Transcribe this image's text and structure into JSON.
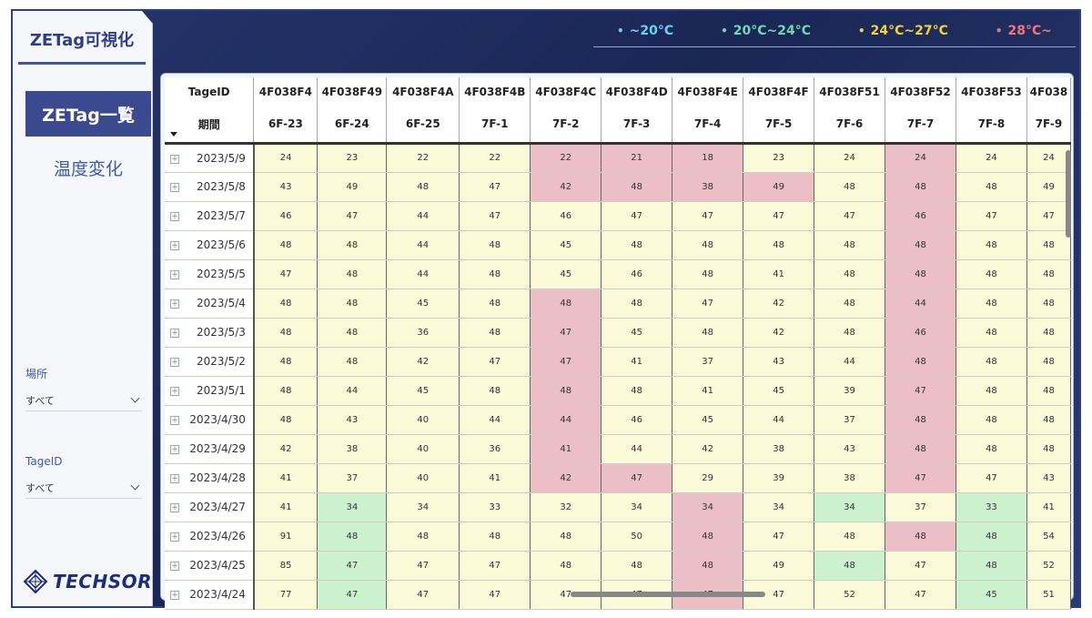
{
  "app": {
    "title": "ZETag可視化"
  },
  "sidebar": {
    "nav": [
      {
        "label": "ZETag一覧"
      },
      {
        "label": "温度変化"
      }
    ],
    "filters": [
      {
        "label": "場所",
        "value": "すべて"
      },
      {
        "label": "TageID",
        "value": "すべて"
      }
    ],
    "logo": "TECHSOR"
  },
  "legend": [
    {
      "label": "~20°C",
      "color": "#66d3f2"
    },
    {
      "label": "20°C~24°C",
      "color": "#6fd7b3"
    },
    {
      "label": "24°C~27°C",
      "color": "#f3d23a"
    },
    {
      "label": "28°C~",
      "color": "#f0757a"
    }
  ],
  "colors": {
    "normal": "#fafad8",
    "hot": "#ebbfc5",
    "cool": "#ccf2cd",
    "frame": "#1d2b5e"
  },
  "table": {
    "header_tag": "TageID",
    "header_period": "期間",
    "tags": [
      "4F038F4",
      "4F038F49",
      "4F038F4A",
      "4F038F4B",
      "4F038F4C",
      "4F038F4D",
      "4F038F4E",
      "4F038F4F",
      "4F038F51",
      "4F038F52",
      "4F038F53",
      "4F038"
    ],
    "places": [
      "6F-23",
      "6F-24",
      "6F-25",
      "7F-1",
      "7F-2",
      "7F-3",
      "7F-4",
      "7F-5",
      "7F-6",
      "7F-7",
      "7F-8",
      "7F-9"
    ],
    "rows": [
      {
        "date": "2023/5/9",
        "values": [
          "24",
          "23",
          "22",
          "22",
          "22",
          "21",
          "18",
          "23",
          "24",
          "24",
          "24",
          "24"
        ],
        "status": [
          "n",
          "n",
          "n",
          "n",
          "r",
          "r",
          "r",
          "n",
          "n",
          "r",
          "n",
          "n"
        ]
      },
      {
        "date": "2023/5/8",
        "values": [
          "43",
          "49",
          "48",
          "47",
          "42",
          "48",
          "38",
          "49",
          "48",
          "48",
          "48",
          "49"
        ],
        "status": [
          "n",
          "n",
          "n",
          "n",
          "r",
          "r",
          "r",
          "r",
          "n",
          "r",
          "n",
          "n"
        ]
      },
      {
        "date": "2023/5/7",
        "values": [
          "46",
          "47",
          "44",
          "47",
          "46",
          "47",
          "47",
          "47",
          "47",
          "46",
          "47",
          "47"
        ],
        "status": [
          "n",
          "n",
          "n",
          "n",
          "n",
          "n",
          "n",
          "n",
          "n",
          "r",
          "n",
          "n"
        ]
      },
      {
        "date": "2023/5/6",
        "values": [
          "48",
          "48",
          "44",
          "48",
          "45",
          "48",
          "48",
          "48",
          "48",
          "48",
          "48",
          "48"
        ],
        "status": [
          "n",
          "n",
          "n",
          "n",
          "n",
          "n",
          "n",
          "n",
          "n",
          "r",
          "n",
          "n"
        ]
      },
      {
        "date": "2023/5/5",
        "values": [
          "47",
          "48",
          "44",
          "48",
          "45",
          "46",
          "48",
          "41",
          "48",
          "48",
          "48",
          "48"
        ],
        "status": [
          "n",
          "n",
          "n",
          "n",
          "n",
          "n",
          "n",
          "n",
          "n",
          "r",
          "n",
          "n"
        ]
      },
      {
        "date": "2023/5/4",
        "values": [
          "48",
          "48",
          "45",
          "48",
          "48",
          "48",
          "47",
          "42",
          "48",
          "44",
          "48",
          "48"
        ],
        "status": [
          "n",
          "n",
          "n",
          "n",
          "r",
          "n",
          "n",
          "n",
          "n",
          "r",
          "n",
          "n"
        ]
      },
      {
        "date": "2023/5/3",
        "values": [
          "48",
          "48",
          "36",
          "48",
          "47",
          "45",
          "48",
          "42",
          "48",
          "46",
          "48",
          "48"
        ],
        "status": [
          "n",
          "n",
          "n",
          "n",
          "r",
          "n",
          "n",
          "n",
          "n",
          "r",
          "n",
          "n"
        ]
      },
      {
        "date": "2023/5/2",
        "values": [
          "48",
          "48",
          "42",
          "47",
          "47",
          "41",
          "37",
          "43",
          "44",
          "48",
          "48",
          "48"
        ],
        "status": [
          "n",
          "n",
          "n",
          "n",
          "r",
          "n",
          "n",
          "n",
          "n",
          "r",
          "n",
          "n"
        ]
      },
      {
        "date": "2023/5/1",
        "values": [
          "48",
          "44",
          "45",
          "48",
          "48",
          "48",
          "41",
          "45",
          "39",
          "47",
          "48",
          "48"
        ],
        "status": [
          "n",
          "n",
          "n",
          "n",
          "r",
          "n",
          "n",
          "n",
          "n",
          "r",
          "n",
          "n"
        ]
      },
      {
        "date": "2023/4/30",
        "values": [
          "48",
          "43",
          "40",
          "44",
          "44",
          "46",
          "45",
          "44",
          "37",
          "48",
          "48",
          "48"
        ],
        "status": [
          "n",
          "n",
          "n",
          "n",
          "r",
          "n",
          "n",
          "n",
          "n",
          "r",
          "n",
          "n"
        ]
      },
      {
        "date": "2023/4/29",
        "values": [
          "42",
          "38",
          "40",
          "36",
          "41",
          "44",
          "42",
          "38",
          "43",
          "48",
          "48",
          "48"
        ],
        "status": [
          "n",
          "n",
          "n",
          "n",
          "r",
          "n",
          "n",
          "n",
          "n",
          "r",
          "n",
          "n"
        ]
      },
      {
        "date": "2023/4/28",
        "values": [
          "41",
          "37",
          "40",
          "41",
          "42",
          "47",
          "29",
          "39",
          "38",
          "47",
          "47",
          "43"
        ],
        "status": [
          "n",
          "n",
          "n",
          "n",
          "r",
          "r",
          "n",
          "n",
          "n",
          "r",
          "n",
          "n"
        ]
      },
      {
        "date": "2023/4/27",
        "values": [
          "41",
          "34",
          "34",
          "33",
          "32",
          "34",
          "34",
          "34",
          "34",
          "37",
          "33",
          "41"
        ],
        "status": [
          "n",
          "g",
          "n",
          "n",
          "n",
          "n",
          "r",
          "n",
          "g",
          "n",
          "g",
          "n"
        ]
      },
      {
        "date": "2023/4/26",
        "values": [
          "91",
          "48",
          "48",
          "48",
          "48",
          "50",
          "48",
          "47",
          "48",
          "48",
          "48",
          "54"
        ],
        "status": [
          "n",
          "g",
          "n",
          "n",
          "n",
          "n",
          "r",
          "n",
          "n",
          "r",
          "g",
          "n"
        ]
      },
      {
        "date": "2023/4/25",
        "values": [
          "85",
          "47",
          "47",
          "47",
          "48",
          "48",
          "48",
          "49",
          "48",
          "47",
          "48",
          "52"
        ],
        "status": [
          "n",
          "g",
          "n",
          "n",
          "n",
          "n",
          "r",
          "n",
          "g",
          "n",
          "g",
          "n"
        ]
      },
      {
        "date": "2023/4/24",
        "values": [
          "77",
          "47",
          "47",
          "47",
          "47",
          "47",
          "47",
          "47",
          "52",
          "47",
          "45",
          "51"
        ],
        "status": [
          "n",
          "g",
          "n",
          "n",
          "n",
          "n",
          "r",
          "n",
          "n",
          "n",
          "g",
          "n"
        ]
      }
    ]
  }
}
